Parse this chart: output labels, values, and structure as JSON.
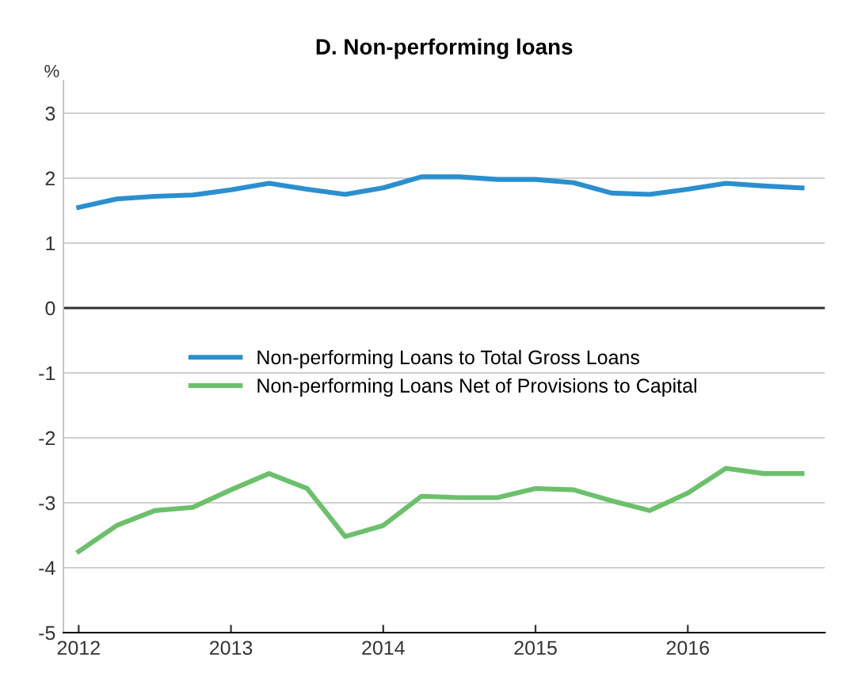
{
  "chart_data": {
    "type": "line",
    "title": "D. Non-performing loans",
    "ylabel": "%",
    "x": [
      2012,
      2012.25,
      2012.5,
      2012.75,
      2013,
      2013.25,
      2013.5,
      2013.75,
      2014,
      2014.25,
      2014.5,
      2014.75,
      2015,
      2015.25,
      2015.5,
      2015.75,
      2016,
      2016.25,
      2016.5,
      2016.75
    ],
    "series": [
      {
        "name": "Non-performing Loans to Total Gross Loans",
        "color": "#2b8fcf",
        "values": [
          1.55,
          1.68,
          1.72,
          1.74,
          1.82,
          1.92,
          1.83,
          1.75,
          1.85,
          2.02,
          2.02,
          1.98,
          1.98,
          1.93,
          1.77,
          1.75,
          1.83,
          1.92,
          1.88,
          1.85
        ]
      },
      {
        "name": "Non-performing Loans Net of Provisions to Capital",
        "color": "#6cc06c",
        "values": [
          -3.75,
          -3.35,
          -3.12,
          -3.07,
          -2.8,
          -2.55,
          -2.78,
          -3.52,
          -3.35,
          -2.9,
          -2.92,
          -2.92,
          -2.78,
          -2.8,
          -2.97,
          -3.12,
          -2.85,
          -2.47,
          -2.55,
          -2.55
        ]
      }
    ],
    "xlim": [
      2011.9,
      2016.9
    ],
    "ylim": [
      -5,
      3.5
    ],
    "xticks": [
      2012,
      2013,
      2014,
      2015,
      2016
    ],
    "yticks": [
      -5,
      -4,
      -3,
      -2,
      -1,
      0,
      1,
      2,
      3
    ],
    "grid": "y",
    "legend": "center",
    "marker": "none",
    "line_style": "solid"
  }
}
